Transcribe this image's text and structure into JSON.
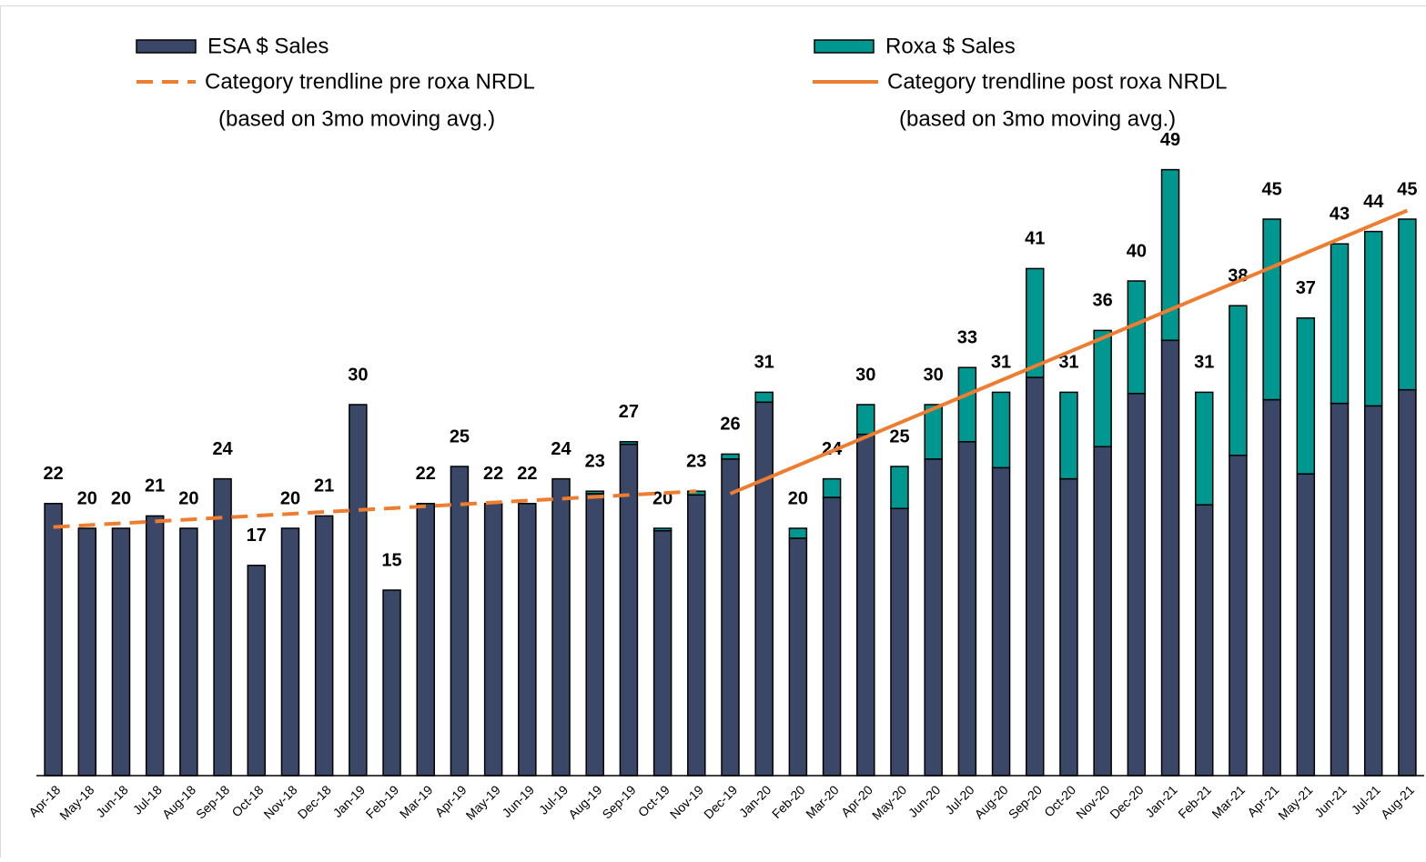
{
  "chart_data": {
    "type": "stacked_bar",
    "categories": [
      "Apr-18",
      "May-18",
      "Jun-18",
      "Jul-18",
      "Aug-18",
      "Sep-18",
      "Oct-18",
      "Nov-18",
      "Dec-18",
      "Jan-19",
      "Feb-19",
      "Mar-19",
      "Apr-19",
      "May-19",
      "Jun-19",
      "Jul-19",
      "Aug-19",
      "Sep-19",
      "Oct-19",
      "Nov-19",
      "Dec-19",
      "Jan-20",
      "Feb-20",
      "Mar-20",
      "Apr-20",
      "May-20",
      "Jun-20",
      "Jul-20",
      "Aug-20",
      "Sep-20",
      "Oct-20",
      "Nov-20",
      "Dec-20",
      "Jan-21",
      "Feb-21",
      "Mar-21",
      "Apr-21",
      "May-21",
      "Jun-21",
      "Jul-21",
      "Aug-21"
    ],
    "series": [
      {
        "name": "ESA $ Sales",
        "color": "#3a4767",
        "values": [
          22,
          20,
          20,
          21,
          20,
          24,
          17,
          20,
          21,
          30,
          15,
          22,
          25,
          22,
          22,
          24,
          22.8,
          26.8,
          19.8,
          22.7,
          25.6,
          30.2,
          19.2,
          22.5,
          27.6,
          21.6,
          25.6,
          27,
          24.9,
          32.2,
          24,
          26.6,
          30.9,
          35.2,
          21.9,
          25.9,
          30.4,
          24.4,
          30.1,
          29.9,
          31.2
        ]
      },
      {
        "name": "Roxa $ Sales",
        "color": "#009790",
        "values": [
          0,
          0,
          0,
          0,
          0,
          0,
          0,
          0,
          0,
          0,
          0,
          0,
          0,
          0,
          0,
          0,
          0.2,
          0.2,
          0.2,
          0.3,
          0.4,
          0.8,
          0.8,
          1.5,
          2.4,
          3.4,
          4.4,
          6,
          6.1,
          8.8,
          7,
          9.4,
          9.1,
          13.8,
          9.1,
          12.1,
          14.6,
          12.6,
          12.9,
          14.1,
          13.8
        ]
      }
    ],
    "totals": [
      22,
      20,
      20,
      21,
      20,
      24,
      17,
      20,
      21,
      30,
      15,
      22,
      25,
      22,
      22,
      24,
      23,
      27,
      20,
      23,
      26,
      31,
      20,
      24,
      30,
      25,
      30,
      33,
      31,
      41,
      31,
      36,
      40,
      49,
      31,
      38,
      45,
      37,
      43,
      44,
      45
    ],
    "trendlines": [
      {
        "name": "Category trendline pre roxa NRDL",
        "note": "(based on 3mo moving avg.)",
        "color": "#ed7d31",
        "dashed": true,
        "from": "Apr-18",
        "to": "Nov-19",
        "values": [
          20.1,
          23
        ]
      },
      {
        "name": "Category trendline post roxa NRDL",
        "note": "(based on 3mo moving avg.)",
        "color": "#ed7d31",
        "dashed": false,
        "from": "Dec-19",
        "to": "Aug-21",
        "values": [
          22.8,
          45.7
        ]
      }
    ],
    "ylim": [
      0,
      52
    ]
  }
}
